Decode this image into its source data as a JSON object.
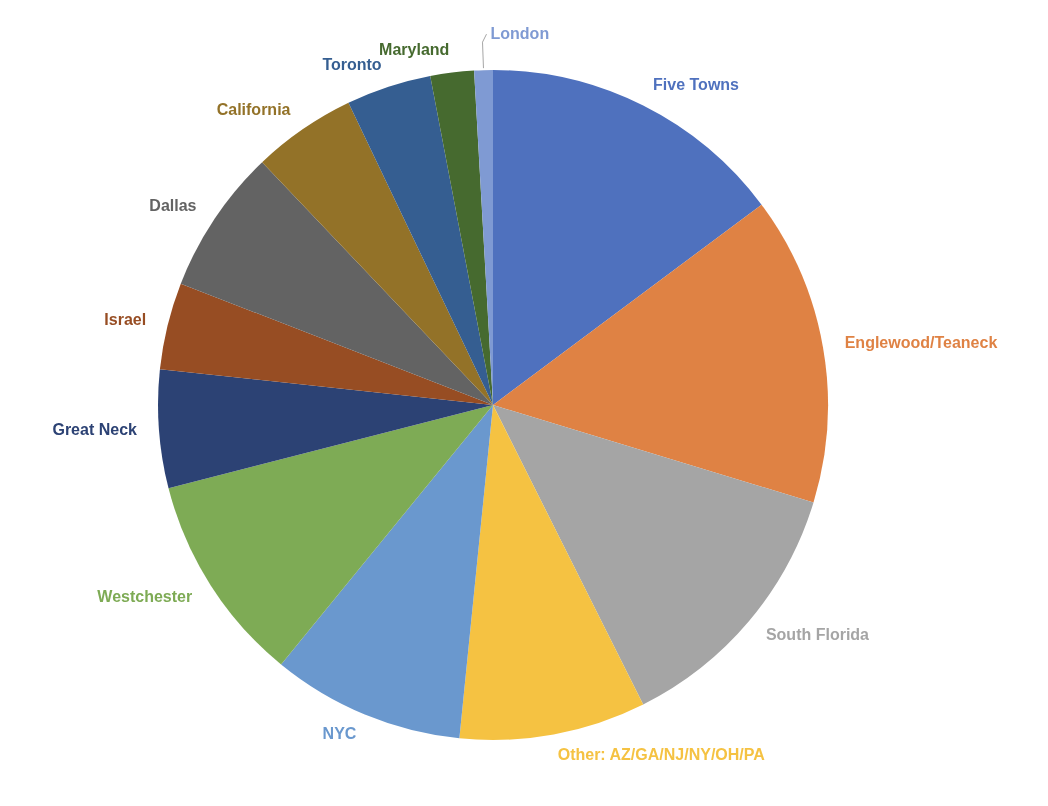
{
  "chart_data": {
    "type": "pie",
    "categories": [
      "Five Towns",
      "Englewood/Teaneck",
      "South Florida",
      "Other: AZ/GA/NJ/NY/OH/PA",
      "NYC",
      "Westchester",
      "Great Neck",
      "Israel",
      "Dallas",
      "California",
      "Toronto",
      "Maryland",
      "London"
    ],
    "values": [
      14.8,
      14.9,
      12.9,
      9.0,
      9.3,
      10.1,
      5.7,
      4.2,
      7.0,
      5.0,
      4.1,
      2.1,
      0.9
    ],
    "colors": [
      "#4f71be",
      "#df8244",
      "#a5a5a5",
      "#f5c242",
      "#6a98ce",
      "#7eab55",
      "#2c4274",
      "#974d23",
      "#636363",
      "#937228",
      "#355e91",
      "#466a2f",
      "#7f9ad3"
    ]
  }
}
